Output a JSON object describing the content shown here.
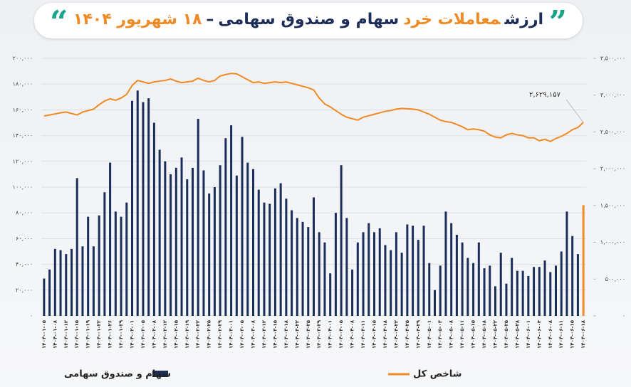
{
  "chart_data": {
    "type": "bar_line",
    "title": [
      {
        "text": "ارزش",
        "color": "#1c2d5a"
      },
      {
        "text": "معاملات خرد",
        "color": "#f08a24"
      },
      {
        "text": "سهام و صندوق سهامی",
        "color": "#1c2d5a"
      },
      {
        "text": "–",
        "color": "#1c2d5a"
      },
      {
        "text": "۱۸ شهریور ۱۴۰۴",
        "color": "#f08a24"
      }
    ],
    "categories": [
      "۱۴۰۴-۰۱-۰۵",
      null,
      "۱۴۰۴-۰۱-۰۸",
      null,
      "۱۴۰۴-۰۱-۱۲",
      null,
      "۱۴۰۴-۰۱-۱۵",
      null,
      "۱۴۰۴-۰۱-۱۹",
      null,
      "۱۴۰۴-۰۱-۲۲",
      null,
      "۱۴۰۴-۰۱-۲۶",
      null,
      "۱۴۰۴-۰۱-۲۹",
      null,
      "۱۴۰۴-۰۲-۰۱",
      null,
      "۱۴۰۴-۰۲-۰۵",
      null,
      "۱۴۰۴-۰۲-۰۸",
      null,
      "۱۴۰۴-۰۲-۱۲",
      null,
      "۱۴۰۴-۰۲-۱۵",
      null,
      "۱۴۰۴-۰۲-۱۹",
      null,
      "۱۴۰۴-۰۲-۲۲",
      null,
      "۱۴۰۴-۰۲-۲۵",
      null,
      "۱۴۰۴-۰۲-۲۹",
      null,
      "۱۴۰۴-۰۳-۰۱",
      null,
      "۱۴۰۴-۰۳-۰۵",
      null,
      "۱۴۰۴-۰۳-۰۸",
      null,
      "۱۴۰۴-۰۳-۱۲",
      null,
      "۱۴۰۴-۰۳-۱۵",
      null,
      "۱۴۰۴-۰۳-۱۸",
      null,
      "۱۴۰۴-۰۳-۲۲",
      null,
      "۱۴۰۴-۰۳-۲۵",
      null,
      "۱۴۰۴-۰۳-۲۹",
      null,
      "۱۴۰۴-۰۴-۰۱",
      null,
      "۱۴۰۴-۰۴-۰۵",
      null,
      "۱۴۰۴-۰۴-۰۸",
      null,
      "۱۴۰۴-۰۴-۱۱",
      null,
      "۱۴۰۴-۰۴-۱۵",
      null,
      "۱۴۰۴-۰۴-۱۸",
      null,
      "۱۴۰۴-۰۴-۲۲",
      null,
      "۱۴۰۴-۰۴-۲۵",
      null,
      "۱۴۰۴-۰۴-۲۹",
      null,
      "۱۴۰۴-۰۵-۰۱",
      null,
      "۱۴۰۴-۰۵-۰۴",
      null,
      "۱۴۰۴-۰۵-۰۸",
      null,
      "۱۴۰۴-۰۵-۱۱",
      null,
      "۱۴۰۴-۰۵-۱۵",
      null,
      "۱۴۰۴-۰۵-۱۸",
      null,
      "۱۴۰۴-۰۵-۲۲",
      null,
      "۱۴۰۴-۰۵-۲۵",
      null,
      "۱۴۰۴-۰۵-۲۸",
      null,
      "۱۴۰۴-۰۶-۰۱",
      null,
      "۱۴۰۴-۰۶-۰۴",
      null,
      "۱۴۰۴-۰۶-۰۸",
      null,
      "۱۴۰۴-۰۶-۱۱",
      null,
      "۱۴۰۴-۰۶-۱۵",
      null,
      "۱۴۰۴-۰۶-۱۸"
    ],
    "series": [
      {
        "name": "سهام و صندوق سهامی",
        "color": "#1c2d5a",
        "last_color": "#f08a24",
        "values": [
          29000,
          36000,
          52000,
          51000,
          48000,
          52000,
          107000,
          54000,
          77000,
          54000,
          78000,
          96000,
          119000,
          81000,
          77000,
          88000,
          167000,
          175000,
          166000,
          169000,
          150000,
          129000,
          120000,
          110000,
          115000,
          123000,
          106000,
          115000,
          153000,
          113000,
          95000,
          100000,
          117000,
          138000,
          148000,
          109000,
          139000,
          119000,
          114000,
          98000,
          88000,
          87000,
          99000,
          103000,
          91000,
          82000,
          76000,
          73000,
          69000,
          92000,
          65000,
          57000,
          33000,
          80000,
          117000,
          76000,
          36000,
          57000,
          65000,
          72000,
          65000,
          68000,
          55000,
          51000,
          65000,
          49000,
          71000,
          70000,
          59000,
          70000,
          41000,
          20000,
          39000,
          81000,
          72000,
          63000,
          57000,
          45000,
          41000,
          57000,
          37000,
          39000,
          23000,
          49000,
          25000,
          45000,
          35000,
          35000,
          31000,
          38000,
          38000,
          43000,
          34000,
          39000,
          50000,
          81000,
          62000,
          48000,
          86000
        ]
      },
      {
        "name": "شاخص کل",
        "color": "#f08a24",
        "axis": "y2",
        "values": [
          2717000,
          2730000,
          2745000,
          2760000,
          2770000,
          2750000,
          2730000,
          2770000,
          2790000,
          2810000,
          2870000,
          2920000,
          2950000,
          2930000,
          2960000,
          3010000,
          3130000,
          3200000,
          3180000,
          3160000,
          3180000,
          3190000,
          3200000,
          3220000,
          3190000,
          3170000,
          3180000,
          3190000,
          3230000,
          3200000,
          3180000,
          3200000,
          3260000,
          3280000,
          3295000,
          3290000,
          3250000,
          3210000,
          3170000,
          3180000,
          3160000,
          3170000,
          3180000,
          3170000,
          3180000,
          3160000,
          3140000,
          3120000,
          3100000,
          3070000,
          2960000,
          2880000,
          2840000,
          2790000,
          2740000,
          2700000,
          2680000,
          2660000,
          2700000,
          2720000,
          2740000,
          2760000,
          2780000,
          2790000,
          2810000,
          2820000,
          2815000,
          2810000,
          2800000,
          2770000,
          2740000,
          2700000,
          2660000,
          2640000,
          2630000,
          2600000,
          2570000,
          2530000,
          2540000,
          2530000,
          2510000,
          2460000,
          2430000,
          2420000,
          2460000,
          2480000,
          2460000,
          2450000,
          2420000,
          2420000,
          2380000,
          2400000,
          2370000,
          2410000,
          2440000,
          2480000,
          2530000,
          2560000,
          2629157
        ]
      }
    ],
    "annotation": {
      "value": 2629157,
      "label": "۲,۶۲۹,۱۵۷"
    },
    "ylim": [
      0,
      200000
    ],
    "yticks": [
      {
        "value": 0,
        "label": "۰"
      },
      {
        "value": 20000,
        "label": "۲۰,۰۰۰"
      },
      {
        "value": 40000,
        "label": "۴۰,۰۰۰"
      },
      {
        "value": 60000,
        "label": "۶۰,۰۰۰"
      },
      {
        "value": 80000,
        "label": "۸۰,۰۰۰"
      },
      {
        "value": 100000,
        "label": "۱۰۰,۰۰۰"
      },
      {
        "value": 120000,
        "label": "۱۲۰,۰۰۰"
      },
      {
        "value": 140000,
        "label": "۱۴۰,۰۰۰"
      },
      {
        "value": 160000,
        "label": "۱۶۰,۰۰۰"
      },
      {
        "value": 180000,
        "label": "۱۸۰,۰۰۰"
      },
      {
        "value": 200000,
        "label": "۲۰۰,۰۰۰"
      }
    ],
    "y2lim": [
      0,
      3500000
    ],
    "y2ticks": [
      {
        "value": 0,
        "label": "۰"
      },
      {
        "value": 500000,
        "label": "۵۰۰,۰۰۰"
      },
      {
        "value": 1000000,
        "label": "۱,۰۰۰,۰۰۰"
      },
      {
        "value": 1500000,
        "label": "۱,۵۰۰,۰۰۰"
      },
      {
        "value": 2000000,
        "label": "۲,۰۰۰,۰۰۰"
      },
      {
        "value": 2500000,
        "label": "۲,۵۰۰,۰۰۰"
      },
      {
        "value": 3000000,
        "label": "۳,۰۰۰,۰۰۰"
      },
      {
        "value": 3500000,
        "label": "۳,۵۰۰,۰۰۰"
      }
    ],
    "grid": true
  }
}
